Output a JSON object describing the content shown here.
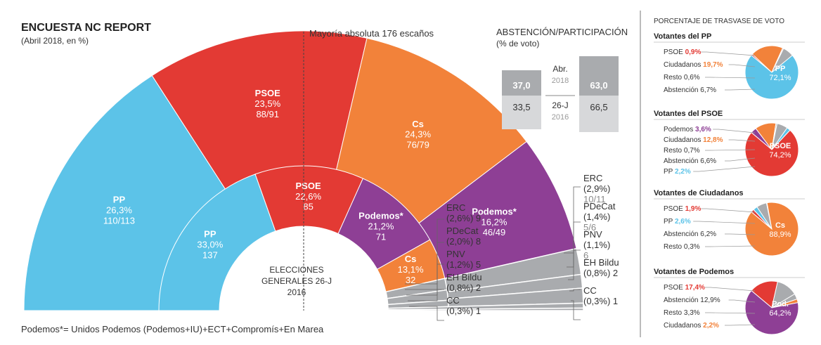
{
  "colors": {
    "pp": "#5cc3e8",
    "psoe": "#e33a34",
    "cs": "#f2823a",
    "podemos": "#8e3f95",
    "other": "#a9abae",
    "text": "#333333",
    "light": "#9a9a9a"
  },
  "header": {
    "title": "ENCUESTA NC REPORT",
    "subtitle": "(Abril 2018, en %)"
  },
  "majority_label": "Mayoría absoluta 176 escaños",
  "inner_caption": [
    "ELECCIONES",
    "GENERALES 26-J",
    "2016"
  ],
  "footnote": "Podemos*= Unidos Podemos (Podemos+IU)+ECT+Compromís+En Marea",
  "abstention": {
    "title": "ABSTENCIÓN/PARTICIPACIÓN",
    "subtitle": "(% de voto)",
    "rows": [
      {
        "abst": "37,0",
        "label": "Abr.",
        "year": "2018",
        "part": "63,0"
      },
      {
        "abst": "33,5",
        "label": "26-J",
        "year": "2016",
        "part": "66,5"
      }
    ]
  },
  "chart_data": [
    {
      "type": "pie",
      "title": "ENCUESTA NC REPORT",
      "subtitle": "(Abril 2018, en %)",
      "categories": [
        "PP",
        "PSOE",
        "Cs",
        "Podemos*",
        "ERC",
        "PDeCat",
        "PNV",
        "EH Bildu",
        "CC"
      ],
      "values": [
        26.3,
        23.5,
        24.3,
        16.2,
        2.9,
        1.4,
        1.1,
        0.8,
        0.3
      ],
      "pct_labels": [
        "26,3%",
        "23,5%",
        "24,3%",
        "16,2%",
        "(2,9%)",
        "(1,4%)",
        "(1,1%)",
        "(0,8%)",
        "(0,3%)"
      ],
      "seats": [
        "110/113",
        "88/91",
        "76/79",
        "46/49",
        "10/11",
        "5/6",
        "6",
        "2",
        "1"
      ],
      "seat_counts": [
        111.5,
        89.5,
        77.5,
        47.5,
        10.5,
        5.5,
        6,
        2,
        1
      ]
    },
    {
      "type": "pie",
      "title": "ELECCIONES GENERALES 26-J 2016",
      "categories": [
        "PP",
        "PSOE",
        "Podemos*",
        "Cs",
        "ERC",
        "PDeCat",
        "PNV",
        "EH Bildu",
        "CC"
      ],
      "values": [
        33.0,
        22.6,
        21.2,
        13.1,
        2.6,
        2.0,
        1.2,
        0.8,
        0.3
      ],
      "pct_labels": [
        "33,0%",
        "22,6%",
        "21,2%",
        "13,1%",
        "(2,6%)",
        "(2,0%)",
        "(1,2%)",
        "(0,8%)",
        "(0,3%)"
      ],
      "seats": [
        "137",
        "85",
        "71",
        "32",
        "9",
        "8",
        "5",
        "2",
        "1"
      ],
      "seat_counts": [
        137,
        85,
        71,
        32,
        9,
        8,
        5,
        2,
        1
      ]
    }
  ],
  "transfers": {
    "title": "PORCENTAJE DE TRASVASE DE VOTO",
    "panels": [
      {
        "title": "Votantes del PP",
        "main_party": "PP",
        "main_value": "72,1%",
        "main_color": "#5cc3e8",
        "items": [
          {
            "name": "PSOE",
            "value": "0,9%",
            "color": "#e33a34"
          },
          {
            "name": "Ciudadanos",
            "value": "19,7%",
            "color": "#f2823a"
          },
          {
            "name": "Resto",
            "value": "0,6%",
            "color": "#a9abae"
          },
          {
            "name": "Abstención",
            "value": "6,7%",
            "color": "#a9abae"
          }
        ],
        "slices": [
          {
            "name": "PSOE",
            "value": 0.9,
            "color": "#e33a34"
          },
          {
            "name": "Ciudadanos",
            "value": 19.7,
            "color": "#f2823a"
          },
          {
            "name": "Resto",
            "value": 0.6,
            "color": "#a9abae"
          },
          {
            "name": "Abstención",
            "value": 6.7,
            "color": "#a9abae"
          },
          {
            "name": "PP",
            "value": 72.1,
            "color": "#5cc3e8"
          }
        ]
      },
      {
        "title": "Votantes del PSOE",
        "main_party": "PSOE",
        "main_value": "74,2%",
        "main_color": "#e33a34",
        "items": [
          {
            "name": "Podemos",
            "value": "3,6%",
            "color": "#8e3f95"
          },
          {
            "name": "Ciudadanos",
            "value": "12,8%",
            "color": "#f2823a"
          },
          {
            "name": "Resto",
            "value": "0,7%",
            "color": "#a9abae"
          },
          {
            "name": "Abstención",
            "value": "6,6%",
            "color": "#a9abae"
          },
          {
            "name": "PP",
            "value": "2,2%",
            "color": "#5cc3e8"
          }
        ],
        "slices": [
          {
            "name": "Podemos",
            "value": 3.6,
            "color": "#8e3f95"
          },
          {
            "name": "Ciudadanos",
            "value": 12.8,
            "color": "#f2823a"
          },
          {
            "name": "Resto",
            "value": 0.7,
            "color": "#a9abae"
          },
          {
            "name": "Abstención",
            "value": 6.6,
            "color": "#a9abae"
          },
          {
            "name": "PP",
            "value": 2.2,
            "color": "#5cc3e8"
          },
          {
            "name": "PSOE",
            "value": 74.2,
            "color": "#e33a34"
          }
        ]
      },
      {
        "title": "Votantes de Ciudadanos",
        "main_party": "Cs",
        "main_value": "88,9%",
        "main_color": "#f2823a",
        "items": [
          {
            "name": "PSOE",
            "value": "1,9%",
            "color": "#e33a34"
          },
          {
            "name": "PP",
            "value": "2,6%",
            "color": "#5cc3e8"
          },
          {
            "name": "Abstención",
            "value": "6,2%",
            "color": "#a9abae"
          },
          {
            "name": "Resto",
            "value": "0,3%",
            "color": "#a9abae"
          }
        ],
        "slices": [
          {
            "name": "PSOE",
            "value": 1.9,
            "color": "#e33a34"
          },
          {
            "name": "PP",
            "value": 2.6,
            "color": "#5cc3e8"
          },
          {
            "name": "Abstención",
            "value": 6.2,
            "color": "#a9abae"
          },
          {
            "name": "Resto",
            "value": 0.3,
            "color": "#a9abae"
          },
          {
            "name": "Cs",
            "value": 88.9,
            "color": "#f2823a"
          }
        ]
      },
      {
        "title": "Votantes de Podemos",
        "main_party": "Pod.",
        "main_value": "64,2%",
        "main_color": "#8e3f95",
        "items": [
          {
            "name": "PSOE",
            "value": "17,4%",
            "color": "#e33a34"
          },
          {
            "name": "Abstención",
            "value": "12,9%",
            "color": "#a9abae"
          },
          {
            "name": "Resto",
            "value": "3,3%",
            "color": "#a9abae"
          },
          {
            "name": "Ciudadanos",
            "value": "2,2%",
            "color": "#f2823a"
          }
        ],
        "slices": [
          {
            "name": "PSOE",
            "value": 17.4,
            "color": "#e33a34"
          },
          {
            "name": "Abstención",
            "value": 12.9,
            "color": "#a9abae"
          },
          {
            "name": "Resto",
            "value": 3.3,
            "color": "#a9abae"
          },
          {
            "name": "Ciudadanos",
            "value": 2.2,
            "color": "#f2823a"
          },
          {
            "name": "Podemos",
            "value": 64.2,
            "color": "#8e3f95"
          }
        ]
      }
    ]
  }
}
